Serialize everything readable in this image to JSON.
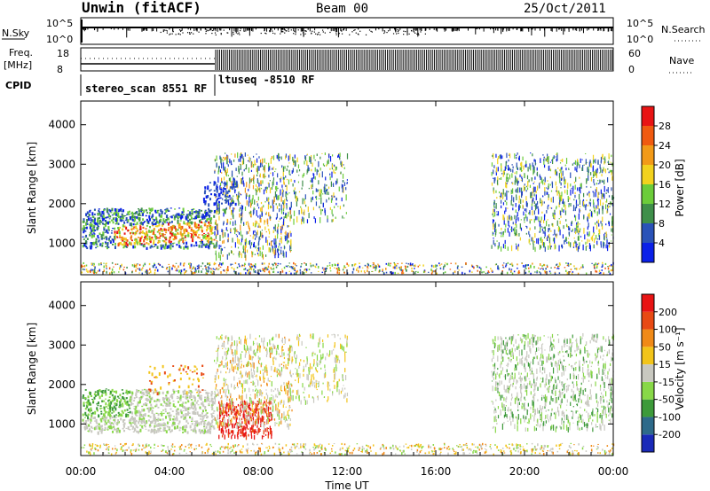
{
  "header": {
    "station": "Unwin (fitACF)",
    "beam": "Beam 00",
    "date": "25/Oct/2011"
  },
  "top_panels": {
    "nsky_label": "N.Sky",
    "nsky_ticks": [
      "10^5",
      "10^0"
    ],
    "nsearch_label": "N.Search",
    "nsearch_ticks": [
      "10^5",
      "10^0"
    ],
    "freq_label": "Freq.",
    "freq_unit": "[MHz]",
    "freq_ticks": [
      "18",
      "8"
    ],
    "nave_label": "Nave",
    "nave_ticks": [
      "60",
      "0"
    ],
    "cpid_label": "CPID",
    "cpid_segments": [
      "stereo_scan 8551 RF",
      "ltuseq -8510 RF"
    ]
  },
  "chart_data": [
    {
      "type": "heatmap",
      "name": "power-panel",
      "ylabel": "Slant Range [km]",
      "y_ticks": [
        "1000",
        "2000",
        "3000",
        "4000"
      ],
      "ylim": [
        200,
        4600
      ],
      "xlim": [
        0,
        24
      ],
      "colorbar_label": "Power [dB]",
      "colorbar_ticks": [
        "4",
        "8",
        "12",
        "16",
        "20",
        "24",
        "28"
      ],
      "colors": [
        "#0a20e8",
        "#2a52b8",
        "#3f8f4a",
        "#6ccc3a",
        "#f2d21e",
        "#f29a18",
        "#f05a10",
        "#e81414"
      ]
    },
    {
      "type": "heatmap",
      "name": "velocity-panel",
      "ylabel": "Slant Range [km]",
      "y_ticks": [
        "1000",
        "2000",
        "3000",
        "4000"
      ],
      "ylim": [
        200,
        4600
      ],
      "xlim": [
        0,
        24
      ],
      "xlabel": "Time UT",
      "x_ticks": [
        "00:00",
        "04:00",
        "08:00",
        "12:00",
        "16:00",
        "20:00",
        "00:00"
      ],
      "colorbar_label": "Velocity [m s⁻¹]",
      "colorbar_ticks": [
        "200",
        "100",
        "50",
        "15",
        "-15",
        "-50",
        "-100",
        "-200"
      ],
      "colors": [
        "#1a2ab8",
        "#2e6a8a",
        "#3d9a3a",
        "#88d848",
        "#c8c8c0",
        "#f2c41a",
        "#f08a18",
        "#e84a14",
        "#e81414"
      ]
    }
  ]
}
